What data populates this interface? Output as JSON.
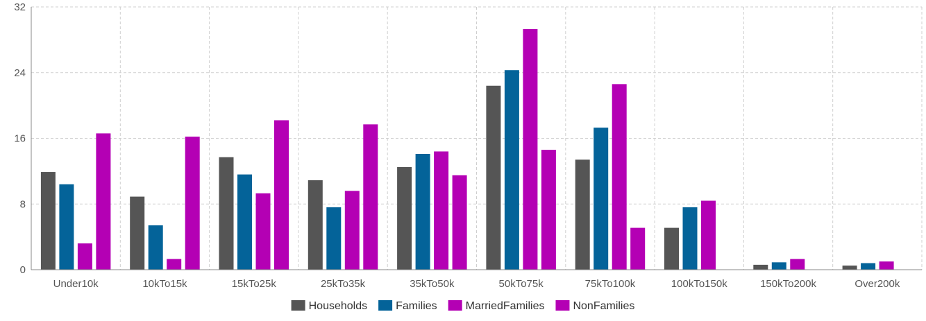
{
  "chart_data": {
    "type": "bar",
    "title": "",
    "xlabel": "",
    "ylabel": "",
    "ylim": [
      0,
      32
    ],
    "yticks": [
      0,
      8,
      16,
      24,
      32
    ],
    "grid": true,
    "legend_position": "bottom",
    "categories": [
      "Under10k",
      "10kTo15k",
      "15kTo25k",
      "25kTo35k",
      "35kTo50k",
      "50kTo75k",
      "75kTo100k",
      "100kTo150k",
      "150kTo200k",
      "Over200k"
    ],
    "series": [
      {
        "name": "Households",
        "color": "#555555",
        "values": [
          11.9,
          8.9,
          13.7,
          10.9,
          12.5,
          22.4,
          13.4,
          5.1,
          0.6,
          0.5
        ]
      },
      {
        "name": "Families",
        "color": "#046399",
        "values": [
          10.4,
          5.4,
          11.6,
          7.6,
          14.1,
          24.3,
          17.3,
          7.6,
          0.9,
          0.8
        ]
      },
      {
        "name": "MarriedFamilies",
        "color": "#b400b4",
        "values": [
          3.2,
          1.3,
          9.3,
          9.6,
          14.4,
          29.3,
          22.6,
          8.4,
          1.3,
          1.0
        ]
      },
      {
        "name": "NonFamilies",
        "color": "#b400b4",
        "values": [
          16.6,
          16.2,
          18.2,
          17.7,
          11.5,
          14.6,
          5.1,
          0,
          0,
          0
        ]
      }
    ]
  }
}
